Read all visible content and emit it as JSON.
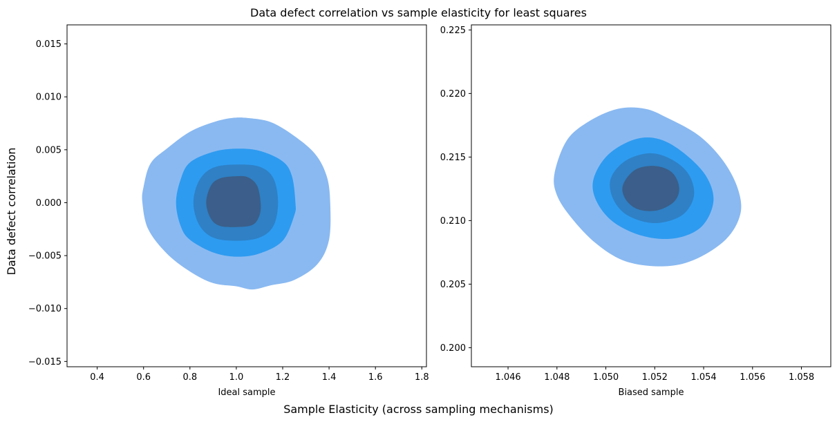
{
  "figure": {
    "suptitle": "Data defect correlation vs sample elasticity for least squares",
    "supxlabel": "Sample Elasticity (across sampling mechanisms)",
    "supylabel": "Data defect correlation"
  },
  "chart_data": [
    {
      "type": "contour",
      "name": "ideal-sample",
      "xlabel": "Ideal sample",
      "ylabel": "",
      "xlim": [
        0.27,
        1.82
      ],
      "ylim": [
        -0.0155,
        0.0168
      ],
      "xticks": [
        0.4,
        0.6,
        0.8,
        1.0,
        1.2,
        1.4,
        1.6,
        1.8
      ],
      "xtick_labels": [
        "0.4",
        "0.6",
        "0.8",
        "1.0",
        "1.2",
        "1.4",
        "1.6",
        "1.8"
      ],
      "yticks": [
        -0.015,
        -0.01,
        -0.005,
        0.0,
        0.005,
        0.01,
        0.015
      ],
      "ytick_labels": [
        "−0.015",
        "−0.010",
        "−0.005",
        "0.000",
        "0.005",
        "0.010",
        "0.015"
      ],
      "levels": [
        {
          "color": "#8ab9f1",
          "points": [
            [
              0.595,
              0.0
            ],
            [
              0.62,
              -0.0025
            ],
            [
              0.7,
              -0.0048
            ],
            [
              0.8,
              -0.0065
            ],
            [
              0.9,
              -0.0076
            ],
            [
              1.0,
              -0.0079
            ],
            [
              1.07,
              -0.0082
            ],
            [
              1.15,
              -0.0078
            ],
            [
              1.25,
              -0.0073
            ],
            [
              1.35,
              -0.0058
            ],
            [
              1.4,
              -0.0035
            ],
            [
              1.405,
              0.0
            ],
            [
              1.39,
              0.0025
            ],
            [
              1.34,
              0.0046
            ],
            [
              1.25,
              0.0063
            ],
            [
              1.15,
              0.0076
            ],
            [
              1.05,
              0.008
            ],
            [
              0.98,
              0.008
            ],
            [
              0.9,
              0.0076
            ],
            [
              0.8,
              0.0067
            ],
            [
              0.7,
              0.0051
            ],
            [
              0.63,
              0.0037
            ],
            [
              0.6,
              0.0015
            ]
          ]
        },
        {
          "color": "#2d9bf0",
          "points": [
            [
              0.74,
              0.0
            ],
            [
              0.76,
              -0.0022
            ],
            [
              0.8,
              -0.0035
            ],
            [
              0.9,
              -0.0047
            ],
            [
              1.0,
              -0.0051
            ],
            [
              1.1,
              -0.0048
            ],
            [
              1.2,
              -0.0036
            ],
            [
              1.25,
              -0.0012
            ],
            [
              1.255,
              0.0
            ],
            [
              1.24,
              0.0025
            ],
            [
              1.2,
              0.0039
            ],
            [
              1.1,
              0.0049
            ],
            [
              1.0,
              0.0051
            ],
            [
              0.9,
              0.0048
            ],
            [
              0.8,
              0.0038
            ],
            [
              0.76,
              0.0022
            ]
          ]
        },
        {
          "color": "#2f80c5",
          "points": [
            [
              0.815,
              0.0
            ],
            [
              0.84,
              -0.0021
            ],
            [
              0.9,
              -0.0033
            ],
            [
              1.0,
              -0.0036
            ],
            [
              1.1,
              -0.0033
            ],
            [
              1.16,
              -0.0022
            ],
            [
              1.18,
              0.0
            ],
            [
              1.16,
              0.0023
            ],
            [
              1.1,
              0.0034
            ],
            [
              1.0,
              0.0036
            ],
            [
              0.9,
              0.0033
            ],
            [
              0.84,
              0.0021
            ]
          ]
        },
        {
          "color": "#3b5f8a",
          "points": [
            [
              0.87,
              0.0
            ],
            [
              0.89,
              -0.0015
            ],
            [
              0.93,
              -0.0022
            ],
            [
              1.0,
              -0.0023
            ],
            [
              1.07,
              -0.0021
            ],
            [
              1.1,
              -0.0012
            ],
            [
              1.105,
              0.0
            ],
            [
              1.09,
              0.0016
            ],
            [
              1.05,
              0.0024
            ],
            [
              1.0,
              0.0025
            ],
            [
              0.93,
              0.0023
            ],
            [
              0.89,
              0.0016
            ]
          ]
        }
      ]
    },
    {
      "type": "contour",
      "name": "biased-sample",
      "xlabel": "Biased sample",
      "ylabel": "",
      "xlim": [
        1.0445,
        1.0592
      ],
      "ylim": [
        0.1985,
        0.2254
      ],
      "xticks": [
        1.046,
        1.048,
        1.05,
        1.052,
        1.054,
        1.056,
        1.058
      ],
      "xtick_labels": [
        "1.046",
        "1.048",
        "1.050",
        "1.052",
        "1.054",
        "1.056",
        "1.058"
      ],
      "yticks": [
        0.2,
        0.205,
        0.21,
        0.215,
        0.22,
        0.225
      ],
      "ytick_labels": [
        "0.200",
        "0.205",
        "0.210",
        "0.215",
        "0.220",
        "0.225"
      ],
      "levels": [
        {
          "color": "#8ab9f1",
          "points": [
            [
              1.0479,
              0.2137
            ],
            [
              1.0484,
              0.2163
            ],
            [
              1.0493,
              0.2178
            ],
            [
              1.0505,
              0.2188
            ],
            [
              1.0516,
              0.2188
            ],
            [
              1.0525,
              0.2181
            ],
            [
              1.0538,
              0.2167
            ],
            [
              1.0548,
              0.2147
            ],
            [
              1.0554,
              0.2125
            ],
            [
              1.0555,
              0.2105
            ],
            [
              1.0549,
              0.2085
            ],
            [
              1.0536,
              0.2069
            ],
            [
              1.0523,
              0.2064
            ],
            [
              1.0508,
              0.2068
            ],
            [
              1.0496,
              0.2082
            ],
            [
              1.0486,
              0.2102
            ],
            [
              1.048,
              0.212
            ]
          ]
        },
        {
          "color": "#2d9bf0",
          "points": [
            [
              1.0495,
              0.2133
            ],
            [
              1.0501,
              0.2152
            ],
            [
              1.0512,
              0.2164
            ],
            [
              1.0522,
              0.2164
            ],
            [
              1.0532,
              0.2153
            ],
            [
              1.0541,
              0.2135
            ],
            [
              1.0544,
              0.2115
            ],
            [
              1.0539,
              0.2095
            ],
            [
              1.0528,
              0.2086
            ],
            [
              1.0515,
              0.2088
            ],
            [
              1.0503,
              0.2099
            ],
            [
              1.0496,
              0.2116
            ]
          ]
        },
        {
          "color": "#2f80c5",
          "points": [
            [
              1.0502,
              0.2133
            ],
            [
              1.0508,
              0.2147
            ],
            [
              1.0518,
              0.2153
            ],
            [
              1.0527,
              0.2148
            ],
            [
              1.0534,
              0.2136
            ],
            [
              1.0536,
              0.2119
            ],
            [
              1.0531,
              0.2104
            ],
            [
              1.052,
              0.2098
            ],
            [
              1.0509,
              0.2104
            ],
            [
              1.0503,
              0.2117
            ]
          ]
        },
        {
          "color": "#3b5f8a",
          "points": [
            [
              1.0507,
              0.2128
            ],
            [
              1.0512,
              0.214
            ],
            [
              1.052,
              0.2143
            ],
            [
              1.0527,
              0.2138
            ],
            [
              1.053,
              0.2126
            ],
            [
              1.0528,
              0.2115
            ],
            [
              1.0521,
              0.2108
            ],
            [
              1.0513,
              0.2109
            ],
            [
              1.0508,
              0.2117
            ]
          ]
        }
      ]
    }
  ]
}
